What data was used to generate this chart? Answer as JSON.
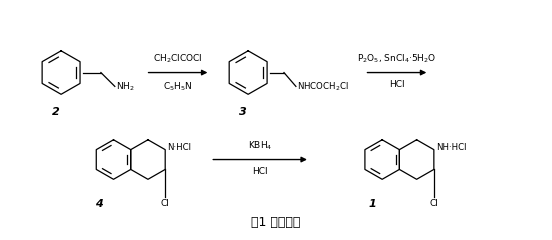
{
  "background_color": "#ffffff",
  "fig_width": 5.52,
  "fig_height": 2.4,
  "dpi": 100,
  "caption": "图1 合成路线",
  "caption_fontsize": 9,
  "arrow1_label_top": "CH$_2$ClCOCl",
  "arrow1_label_bot": "C$_5$H$_5$N",
  "arrow2_label_top": "P$_2$O$_5$, SnCl$_4$·5H$_2$O",
  "arrow2_label_bot": "HCl",
  "arrow3_label_top": "KBH$_4$",
  "arrow3_label_bot": "HCl",
  "label_fontsize": 6.5,
  "num_fontsize": 8
}
